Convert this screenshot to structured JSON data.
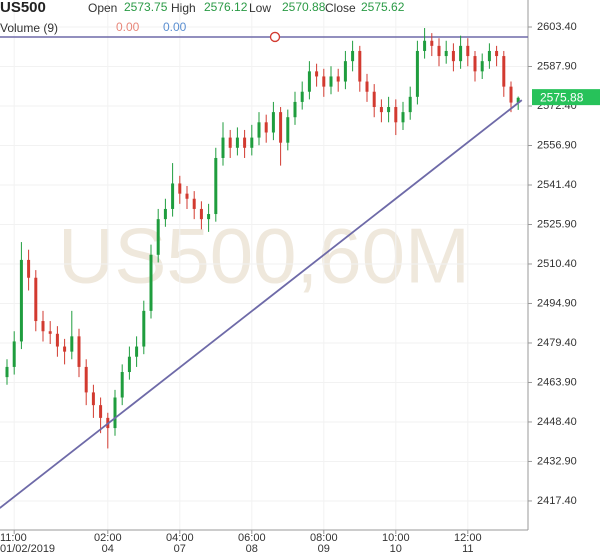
{
  "chart_data": {
    "type": "candlestick",
    "title": "US500",
    "legend": [
      {
        "label": "Open",
        "value": 2573.75
      },
      {
        "label": "High",
        "value": 2576.12
      },
      {
        "label": "Low",
        "value": 2570.88
      },
      {
        "label": "Close",
        "value": 2575.62
      }
    ],
    "volume": {
      "label": "Volume (9)",
      "values": [
        {
          "value": 0,
          "label": "0.00",
          "color": "#e8877a"
        },
        {
          "value": 0,
          "label": "0.00",
          "color": "#5b8fd1"
        }
      ]
    },
    "watermark": "US500,60M",
    "up_color": "#1f9d3e",
    "down_color": "#d23a30",
    "value_color": "#2a9a45",
    "open": [
      2466,
      2470,
      2480,
      2512,
      2505,
      2488,
      2484,
      2483,
      2478,
      2476,
      2482,
      2470,
      2460,
      2455,
      2450,
      2446,
      2458,
      2468,
      2474,
      2478,
      2492,
      2514,
      2528,
      2532,
      2542,
      2538,
      2536,
      2532,
      2528,
      2530,
      2552,
      2560,
      2556,
      2560,
      2556,
      2560,
      2566,
      2562,
      2570,
      2558,
      2568,
      2574,
      2578,
      2586,
      2584,
      2580,
      2584,
      2582,
      2590,
      2594,
      2582,
      2578,
      2572,
      2570,
      2572,
      2566,
      2570,
      2576,
      2594,
      2598,
      2596,
      2592,
      2594,
      2590,
      2596,
      2592,
      2586,
      2590,
      2594,
      2592,
      2580,
      2573.75
    ],
    "high": [
      2473,
      2484,
      2519,
      2516,
      2508,
      2492,
      2488,
      2486,
      2481,
      2492,
      2485,
      2473,
      2463,
      2458,
      2452,
      2461,
      2471,
      2478,
      2482,
      2496,
      2518,
      2532,
      2536,
      2550,
      2545,
      2541,
      2539,
      2535,
      2534,
      2556,
      2566,
      2563,
      2564,
      2563,
      2565,
      2570,
      2569,
      2574,
      2572,
      2571,
      2578,
      2582,
      2590,
      2589,
      2587,
      2588,
      2587,
      2594,
      2598,
      2596,
      2585,
      2581,
      2575,
      2576,
      2575,
      2574,
      2580,
      2598,
      2603,
      2601,
      2599,
      2598,
      2597,
      2600,
      2599,
      2594,
      2593,
      2597,
      2596,
      2594,
      2582,
      2576.12
    ],
    "low": [
      2463,
      2467,
      2477,
      2500,
      2484,
      2480,
      2479,
      2474,
      2471,
      2473,
      2466,
      2455,
      2450,
      2444,
      2438,
      2443,
      2455,
      2465,
      2470,
      2475,
      2489,
      2511,
      2525,
      2529,
      2534,
      2532,
      2528,
      2524,
      2523,
      2527,
      2549,
      2552,
      2553,
      2552,
      2553,
      2557,
      2558,
      2559,
      2549,
      2555,
      2565,
      2571,
      2575,
      2580,
      2576,
      2577,
      2578,
      2579,
      2586,
      2578,
      2574,
      2568,
      2566,
      2566,
      2561,
      2563,
      2567,
      2573,
      2591,
      2592,
      2588,
      2589,
      2586,
      2587,
      2588,
      2582,
      2583,
      2587,
      2588,
      2576,
      2570,
      2570.88
    ],
    "close": [
      2470,
      2480,
      2512,
      2505,
      2488,
      2484,
      2483,
      2478,
      2476,
      2482,
      2470,
      2460,
      2455,
      2450,
      2446,
      2458,
      2468,
      2474,
      2478,
      2492,
      2514,
      2528,
      2532,
      2542,
      2538,
      2536,
      2532,
      2528,
      2530,
      2552,
      2560,
      2556,
      2560,
      2556,
      2560,
      2566,
      2562,
      2570,
      2558,
      2568,
      2574,
      2578,
      2586,
      2584,
      2580,
      2584,
      2582,
      2590,
      2594,
      2582,
      2578,
      2572,
      2570,
      2572,
      2566,
      2570,
      2576,
      2594,
      2598,
      2596,
      2592,
      2594,
      2590,
      2596,
      2592,
      2586,
      2590,
      2594,
      2592,
      2580,
      2573.75,
      2575.62
    ],
    "xticks": [
      {
        "index": 1,
        "time": "11:00",
        "date": "01/02/2019"
      },
      {
        "index": 14,
        "time": "02:00",
        "date": "04"
      },
      {
        "index": 24,
        "time": "04:00",
        "date": "07"
      },
      {
        "index": 34,
        "time": "06:00",
        "date": "08"
      },
      {
        "index": 44,
        "time": "08:00",
        "date": "09"
      },
      {
        "index": 54,
        "time": "10:00",
        "date": "10"
      },
      {
        "index": 64,
        "time": "12:00",
        "date": "11"
      }
    ],
    "ylim": [
      2406,
      2614
    ],
    "yticks": [
      {
        "value": 2603.4,
        "label": "2603.40"
      },
      {
        "value": 2587.9,
        "label": "2587.90"
      },
      {
        "value": 2572.4,
        "label": "2572.40"
      },
      {
        "value": 2556.9,
        "label": "2556.90"
      },
      {
        "value": 2541.4,
        "label": "2541.40"
      },
      {
        "value": 2525.9,
        "label": "2525.90"
      },
      {
        "value": 2510.4,
        "label": "2510.40"
      },
      {
        "value": 2494.9,
        "label": "2494.90"
      },
      {
        "value": 2479.4,
        "label": "2479.40"
      },
      {
        "value": 2463.9,
        "label": "2463.90"
      },
      {
        "value": 2448.4,
        "label": "2448.40"
      },
      {
        "value": 2432.9,
        "label": "2432.90"
      },
      {
        "value": 2417.4,
        "label": "2417.40"
      }
    ],
    "last_price": 2575.88,
    "hline": 2599.5,
    "trendline": {
      "x": [
        -1,
        71.5
      ],
      "values": [
        2414.6,
        2574.7
      ]
    },
    "grid": true
  }
}
